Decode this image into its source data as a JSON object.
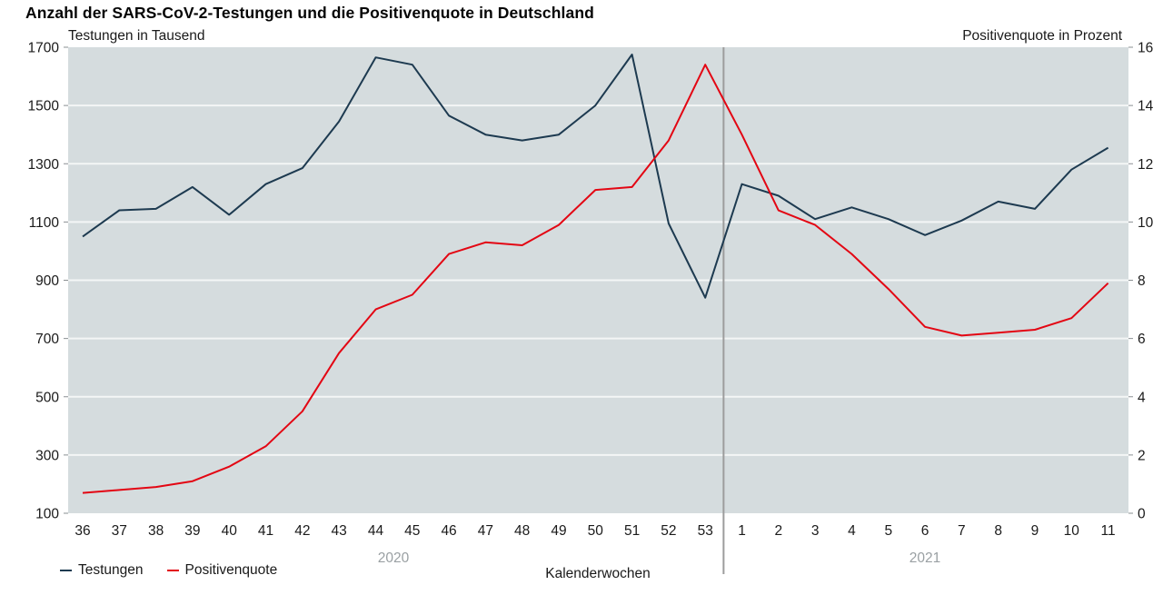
{
  "title": "Anzahl der SARS-CoV-2-Testungen und die Positivenquote in Deutschland",
  "left_axis": {
    "label": "Testungen in Tausend",
    "ticks": [
      1700,
      1500,
      1300,
      1100,
      900,
      700,
      500,
      300,
      100
    ],
    "min": 100,
    "max": 1700
  },
  "right_axis": {
    "label": "Positivenquote in Prozent",
    "ticks": [
      16,
      14,
      12,
      10,
      8,
      6,
      4,
      2,
      0
    ],
    "min": 0,
    "max": 16
  },
  "x_axis": {
    "label": "Kalenderwochen",
    "year_2020": "2020",
    "year_2021": "2021"
  },
  "legend": [
    {
      "label": "Testungen",
      "color": "#1d3a50"
    },
    {
      "label": "Positivenquote",
      "color": "#e30613"
    }
  ],
  "colors": {
    "plot_background": "#d5dcde",
    "gridline": "#f4f6f6",
    "tick_mark": "#8a8f92",
    "separator": "#9c9c9c",
    "testungen_line": "#1d3a50",
    "positivenquote_line": "#e30613",
    "tick_text": "#1a1a1a",
    "year_text": "#9aa0a3"
  },
  "chart_data": {
    "type": "line",
    "x_tick_labels": [
      "36",
      "37",
      "38",
      "39",
      "40",
      "41",
      "42",
      "43",
      "44",
      "45",
      "46",
      "47",
      "48",
      "49",
      "50",
      "51",
      "52",
      "53",
      "1",
      "2",
      "3",
      "4",
      "5",
      "6",
      "7",
      "8",
      "9",
      "10",
      "11"
    ],
    "separator_after_index": 17,
    "left_ylim": [
      100,
      1700
    ],
    "right_ylim": [
      0,
      16
    ],
    "grid": "horizontal",
    "legend_position": "bottom-left",
    "series": [
      {
        "name": "Testungen",
        "axis": "left",
        "unit": "Tausend",
        "color": "#1d3a50",
        "values": [
          1050,
          1140,
          1145,
          1220,
          1125,
          1230,
          1285,
          1445,
          1665,
          1640,
          1465,
          1400,
          1380,
          1400,
          1500,
          1675,
          1095,
          840,
          1230,
          1190,
          1110,
          1150,
          1110,
          1055,
          1105,
          1170,
          1145,
          1280,
          1355
        ]
      },
      {
        "name": "Positivenquote",
        "axis": "right",
        "unit": "Prozent",
        "color": "#e30613",
        "values": [
          0.7,
          0.8,
          0.9,
          1.1,
          1.6,
          2.3,
          3.5,
          5.5,
          7.0,
          7.5,
          8.9,
          9.3,
          9.2,
          9.9,
          11.1,
          11.2,
          12.8,
          15.4,
          13.0,
          10.4,
          9.9,
          8.9,
          7.7,
          6.4,
          6.1,
          6.2,
          6.3,
          6.7,
          7.9
        ]
      }
    ]
  }
}
